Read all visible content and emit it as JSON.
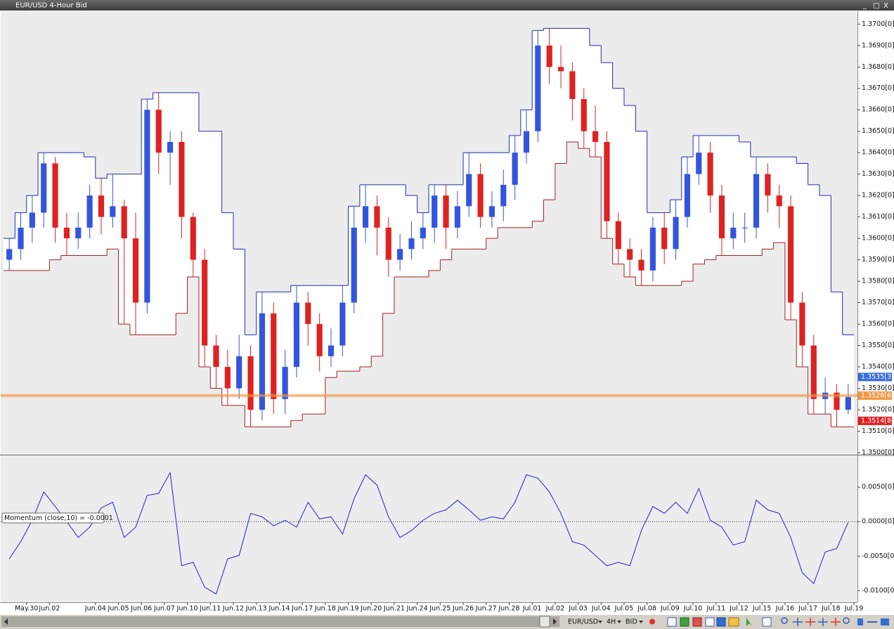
{
  "window": {
    "title": "EUR/USD 4-Hour Bid",
    "controls": [
      "_",
      "□",
      "X"
    ]
  },
  "toolbar": {
    "symbol": "EUR/USD",
    "period": "4H",
    "price_type": "BID"
  },
  "chart_data": [
    {
      "type": "candlestick",
      "xlim": [
        0,
        74
      ],
      "ylim": [
        1.35,
        1.3706
      ],
      "up_color": "#3355dd",
      "down_color": "#dd2222",
      "open": [
        1.359,
        1.3595,
        1.3605,
        1.3612,
        1.3635,
        1.3605,
        1.36,
        1.3605,
        1.362,
        1.361,
        1.3615,
        1.36,
        1.357,
        1.366,
        1.364,
        1.3645,
        1.361,
        1.359,
        1.355,
        1.354,
        1.353,
        1.3545,
        1.352,
        1.3565,
        1.3525,
        1.354,
        1.357,
        1.356,
        1.3545,
        1.355,
        1.357,
        1.3605,
        1.3615,
        1.3605,
        1.359,
        1.3595,
        1.36,
        1.3605,
        1.362,
        1.3605,
        1.3615,
        1.363,
        1.361,
        1.3615,
        1.3625,
        1.364,
        1.365,
        1.369,
        1.368,
        1.3678,
        1.3665,
        1.365,
        1.3645,
        1.3608,
        1.3595,
        1.359,
        1.3585,
        1.3605,
        1.3595,
        1.361,
        1.363,
        1.364,
        1.362,
        1.36,
        1.3605,
        1.3605,
        1.363,
        1.362,
        1.3615,
        1.357,
        1.355,
        1.3525,
        1.3528,
        1.352
      ],
      "high": [
        1.36,
        1.3612,
        1.362,
        1.364,
        1.3638,
        1.3612,
        1.3612,
        1.3625,
        1.3628,
        1.363,
        1.3618,
        1.3612,
        1.3665,
        1.3668,
        1.365,
        1.365,
        1.3612,
        1.3595,
        1.3555,
        1.3548,
        1.3555,
        1.355,
        1.3575,
        1.357,
        1.3548,
        1.3578,
        1.3575,
        1.3565,
        1.3558,
        1.3578,
        1.3615,
        1.3625,
        1.362,
        1.361,
        1.3602,
        1.3608,
        1.3612,
        1.3625,
        1.3625,
        1.3622,
        1.364,
        1.3635,
        1.3622,
        1.3632,
        1.3648,
        1.366,
        1.3697,
        1.3698,
        1.369,
        1.3682,
        1.367,
        1.3662,
        1.365,
        1.3612,
        1.36,
        1.3595,
        1.361,
        1.3612,
        1.3618,
        1.3638,
        1.3648,
        1.3645,
        1.3625,
        1.3612,
        1.3612,
        1.3638,
        1.3635,
        1.3625,
        1.362,
        1.3575,
        1.3555,
        1.3535,
        1.3532,
        1.3532
      ],
      "low": [
        1.3585,
        1.359,
        1.3598,
        1.3605,
        1.3598,
        1.3592,
        1.3595,
        1.36,
        1.3602,
        1.3605,
        1.356,
        1.3555,
        1.3565,
        1.363,
        1.3625,
        1.36,
        1.3582,
        1.354,
        1.353,
        1.3522,
        1.3525,
        1.3512,
        1.3515,
        1.3518,
        1.3518,
        1.3535,
        1.355,
        1.3538,
        1.354,
        1.3545,
        1.3565,
        1.3598,
        1.3592,
        1.3582,
        1.3585,
        1.359,
        1.3595,
        1.3598,
        1.3595,
        1.36,
        1.361,
        1.3605,
        1.3605,
        1.3608,
        1.3618,
        1.3635,
        1.3645,
        1.3672,
        1.367,
        1.3655,
        1.3642,
        1.3638,
        1.36,
        1.3588,
        1.3582,
        1.3578,
        1.358,
        1.3588,
        1.359,
        1.3605,
        1.3625,
        1.3612,
        1.3592,
        1.3595,
        1.3598,
        1.36,
        1.3612,
        1.3605,
        1.3562,
        1.354,
        1.3518,
        1.3518,
        1.3512,
        1.3518
      ],
      "close": [
        1.3595,
        1.3605,
        1.3612,
        1.3635,
        1.3605,
        1.36,
        1.3605,
        1.362,
        1.361,
        1.3615,
        1.36,
        1.357,
        1.366,
        1.364,
        1.3645,
        1.361,
        1.359,
        1.355,
        1.354,
        1.353,
        1.3545,
        1.352,
        1.3565,
        1.3525,
        1.354,
        1.357,
        1.356,
        1.3545,
        1.355,
        1.357,
        1.3605,
        1.3615,
        1.3605,
        1.359,
        1.3595,
        1.36,
        1.3605,
        1.362,
        1.3605,
        1.3615,
        1.363,
        1.361,
        1.3615,
        1.3625,
        1.364,
        1.365,
        1.369,
        1.368,
        1.3678,
        1.3665,
        1.365,
        1.3645,
        1.3608,
        1.3595,
        1.359,
        1.3585,
        1.3605,
        1.3595,
        1.361,
        1.363,
        1.364,
        1.362,
        1.36,
        1.3605,
        1.3605,
        1.363,
        1.362,
        1.3615,
        1.357,
        1.355,
        1.3525,
        1.3528,
        1.352,
        1.3526
      ],
      "channel_upper_color": "#1f2fa8",
      "channel_lower_color": "#a02020",
      "channel_upper": [
        1.36,
        1.3612,
        1.362,
        1.364,
        1.364,
        1.364,
        1.364,
        1.3638,
        1.3628,
        1.363,
        1.363,
        1.363,
        1.3665,
        1.3668,
        1.3668,
        1.3668,
        1.3668,
        1.365,
        1.365,
        1.3612,
        1.3595,
        1.3555,
        1.3575,
        1.3575,
        1.3575,
        1.3578,
        1.3578,
        1.3578,
        1.3578,
        1.3578,
        1.3615,
        1.3625,
        1.3625,
        1.3625,
        1.3625,
        1.362,
        1.3612,
        1.3625,
        1.3625,
        1.3625,
        1.364,
        1.364,
        1.364,
        1.364,
        1.3648,
        1.366,
        1.3697,
        1.3698,
        1.3698,
        1.3698,
        1.3698,
        1.369,
        1.3682,
        1.367,
        1.3662,
        1.365,
        1.3612,
        1.3612,
        1.3618,
        1.3638,
        1.3648,
        1.3648,
        1.3648,
        1.3648,
        1.3645,
        1.3638,
        1.3638,
        1.3638,
        1.3638,
        1.3635,
        1.3625,
        1.362,
        1.3575,
        1.3555
      ],
      "channel_lower": [
        1.3585,
        1.3585,
        1.3585,
        1.3585,
        1.359,
        1.3592,
        1.3592,
        1.3592,
        1.3592,
        1.3595,
        1.356,
        1.3555,
        1.3555,
        1.3555,
        1.3555,
        1.3565,
        1.3582,
        1.354,
        1.353,
        1.3522,
        1.3522,
        1.3512,
        1.3512,
        1.3512,
        1.3512,
        1.3515,
        1.3518,
        1.3518,
        1.3535,
        1.3538,
        1.3538,
        1.354,
        1.3545,
        1.3565,
        1.3582,
        1.3582,
        1.3582,
        1.3585,
        1.359,
        1.3595,
        1.3595,
        1.3595,
        1.36,
        1.3605,
        1.3605,
        1.3605,
        1.3608,
        1.3618,
        1.3635,
        1.3645,
        1.3642,
        1.3638,
        1.36,
        1.3588,
        1.3582,
        1.3578,
        1.3578,
        1.3578,
        1.3578,
        1.358,
        1.3588,
        1.359,
        1.3592,
        1.3592,
        1.3592,
        1.3592,
        1.3595,
        1.3598,
        1.3562,
        1.354,
        1.3518,
        1.3518,
        1.3512,
        1.3512
      ],
      "yticks": [
        {
          "value": 1.35,
          "label": "1.3500[0]"
        },
        {
          "value": 1.351,
          "label": "1.3510[0]"
        },
        {
          "value": 1.352,
          "label": "1.3520[0]"
        },
        {
          "value": 1.353,
          "label": "1.3530[0]"
        },
        {
          "value": 1.354,
          "label": "1.3540[0]"
        },
        {
          "value": 1.355,
          "label": "1.3550[0]"
        },
        {
          "value": 1.356,
          "label": "1.3560[0]"
        },
        {
          "value": 1.357,
          "label": "1.3570[0]"
        },
        {
          "value": 1.358,
          "label": "1.3580[0]"
        },
        {
          "value": 1.359,
          "label": "1.3590[0]"
        },
        {
          "value": 1.36,
          "label": "1.3600[0]"
        },
        {
          "value": 1.361,
          "label": "1.3610[0]"
        },
        {
          "value": 1.362,
          "label": "1.3620[0]"
        },
        {
          "value": 1.363,
          "label": "1.3630[0]"
        },
        {
          "value": 1.364,
          "label": "1.3640[0]"
        },
        {
          "value": 1.365,
          "label": "1.3650[0]"
        },
        {
          "value": 1.366,
          "label": "1.3660[0]"
        },
        {
          "value": 1.367,
          "label": "1.3670[0]"
        },
        {
          "value": 1.368,
          "label": "1.3680[0]"
        },
        {
          "value": 1.369,
          "label": "1.3690[0]"
        },
        {
          "value": 1.37,
          "label": "1.3700[0]"
        }
      ],
      "price_markers": [
        {
          "value": 1.35353,
          "label": "1.3535[3]",
          "color": "#3a6fd8",
          "line": false
        },
        {
          "value": 1.35266,
          "label": "1.3526[6]",
          "color": "#f09848",
          "line": true
        },
        {
          "value": 1.35148,
          "label": "1.3514[8]",
          "color": "#e02020",
          "line": false
        }
      ]
    },
    {
      "type": "line",
      "legend_label": "Momentum (close,10) = -0.0001",
      "color": "#2222cc",
      "zero_line": true,
      "xlim": [
        0,
        74
      ],
      "ylim": [
        -0.0117,
        0.0094
      ],
      "values": [
        -0.0054,
        -0.0029,
        0.0002,
        0.0043,
        0.0022,
        0.0,
        -0.0023,
        -0.0008,
        0.002,
        0.0028,
        -0.0023,
        -0.0008,
        0.0038,
        0.0041,
        0.0071,
        -0.0064,
        -0.0059,
        -0.0095,
        -0.0105,
        -0.0054,
        -0.0049,
        0.0012,
        0.0007,
        -0.0006,
        0.0002,
        -0.0008,
        0.0028,
        0.0004,
        0.0007,
        -0.0018,
        0.0033,
        0.0068,
        0.0053,
        0.0007,
        -0.0023,
        -0.0013,
        0.0002,
        0.0012,
        0.0017,
        0.0031,
        0.0017,
        0.0002,
        0.0007,
        0.0004,
        0.0028,
        0.0068,
        0.0063,
        0.0043,
        0.0012,
        -0.0029,
        -0.0034,
        -0.0049,
        -0.0064,
        -0.0059,
        -0.0064,
        -0.0013,
        0.0022,
        0.0012,
        0.0028,
        0.0012,
        0.0048,
        0.0002,
        -0.0008,
        -0.0034,
        -0.0029,
        0.0031,
        0.0017,
        0.0012,
        -0.0023,
        -0.0074,
        -0.009,
        -0.0044,
        -0.0039,
        -0.0001
      ],
      "yticks": [
        {
          "value": 0.005,
          "label": "0.0050[0]"
        },
        {
          "value": 0,
          "label": "0.0000[0]"
        },
        {
          "value": -0.005,
          "label": "-0.0050[0]"
        },
        {
          "value": -0.01,
          "label": "-0.0100[0]"
        }
      ],
      "xticks": [
        {
          "value": 2,
          "label": "May.30"
        },
        {
          "value": 4,
          "label": "Jun.02"
        },
        {
          "value": 8,
          "label": "Jun.04"
        },
        {
          "value": 10,
          "label": "Jun.05"
        },
        {
          "value": 12,
          "label": "Jun.06"
        },
        {
          "value": 14,
          "label": "Jun.07"
        },
        {
          "value": 16,
          "label": "Jun.10"
        },
        {
          "value": 18,
          "label": "Jun.11"
        },
        {
          "value": 20,
          "label": "Jun.12"
        },
        {
          "value": 22,
          "label": "Jun.13"
        },
        {
          "value": 24,
          "label": "Jun.14"
        },
        {
          "value": 26,
          "label": "Jun.17"
        },
        {
          "value": 28,
          "label": "Jun.18"
        },
        {
          "value": 30,
          "label": "Jun.19"
        },
        {
          "value": 32,
          "label": "Jun.20"
        },
        {
          "value": 34,
          "label": "Jun.21"
        },
        {
          "value": 36,
          "label": "Jun.24"
        },
        {
          "value": 38,
          "label": "Jun.25"
        },
        {
          "value": 40,
          "label": "Jun.26"
        },
        {
          "value": 42,
          "label": "Jun.27"
        },
        {
          "value": 44,
          "label": "Jun.28"
        },
        {
          "value": 46,
          "label": "Jul.01"
        },
        {
          "value": 48,
          "label": "Jul.02"
        },
        {
          "value": 50,
          "label": "Jul.03"
        },
        {
          "value": 52,
          "label": "Jul.04"
        },
        {
          "value": 54,
          "label": "Jul.05"
        },
        {
          "value": 56,
          "label": "Jul.08"
        },
        {
          "value": 58,
          "label": "Jul.09"
        },
        {
          "value": 60,
          "label": "Jul.10"
        },
        {
          "value": 62,
          "label": "Jul.11"
        },
        {
          "value": 64,
          "label": "Jul.12"
        },
        {
          "value": 66,
          "label": "Jul.15"
        },
        {
          "value": 68,
          "label": "Jul.16"
        },
        {
          "value": 70,
          "label": "Jul.17"
        },
        {
          "value": 72,
          "label": "Jul.18"
        },
        {
          "value": 74,
          "label": "Jul.19"
        }
      ]
    }
  ]
}
